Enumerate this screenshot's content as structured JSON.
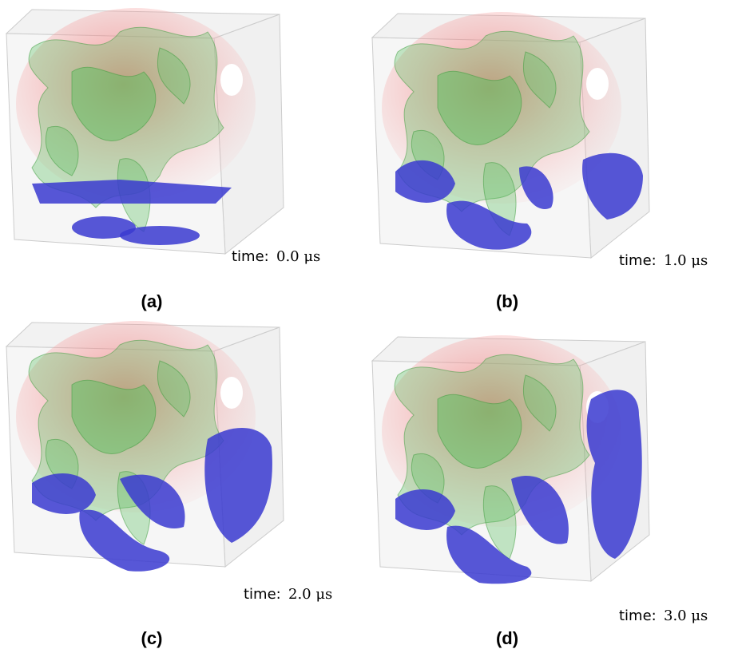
{
  "panels": [
    {
      "label": "(a)",
      "time_label": "time:",
      "time_value": "0.0 μs"
    },
    {
      "label": "(b)",
      "time_label": "time:",
      "time_value": "1.0 μs"
    },
    {
      "label": "(c)",
      "time_label": "time:",
      "time_value": "2.0 μs"
    },
    {
      "label": "(d)",
      "time_label": "time:",
      "time_value": "3.0 μs"
    }
  ]
}
